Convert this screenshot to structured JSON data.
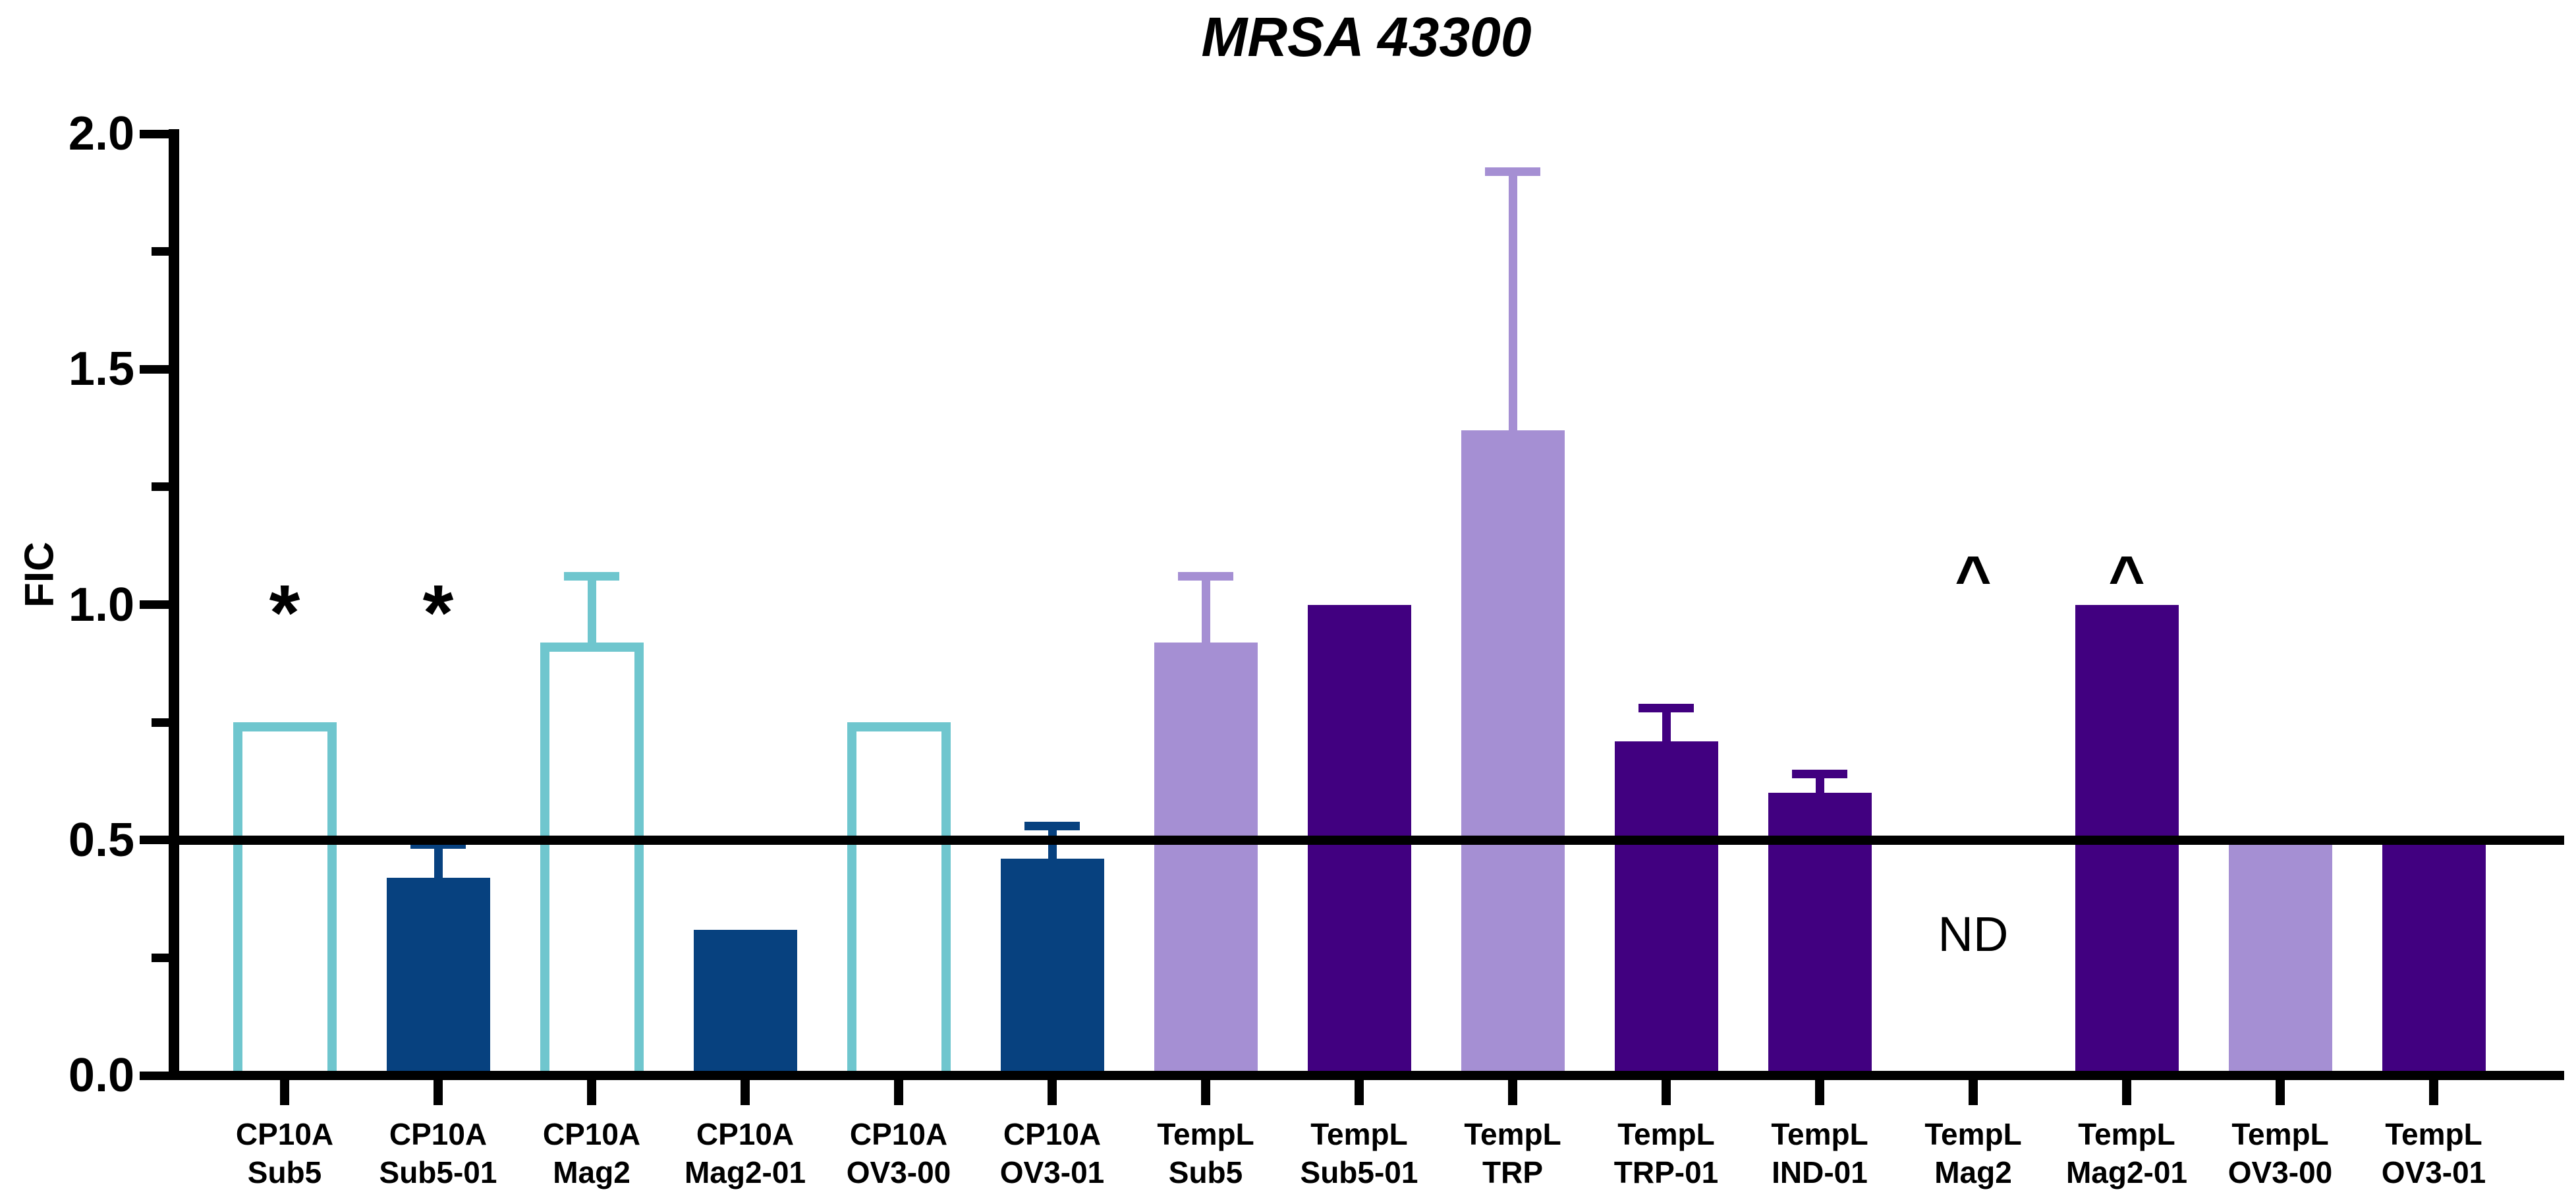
{
  "title": "MRSA 43300",
  "y_axis": {
    "label": "FIC",
    "tick_labels": [
      "0.0",
      "0.5",
      "1.0",
      "1.5",
      "2.0"
    ]
  },
  "annotations": {
    "nd_label": "ND",
    "star_symbol": "*",
    "caret_symbol": "^"
  },
  "colors": {
    "teal_outline": "#6FC6CE",
    "navy": "#07417F",
    "light_purple": "#A58FD3",
    "dark_purple": "#410080",
    "axis_black": "#000000",
    "background": "#FFFFFF"
  },
  "chart_data": {
    "type": "bar",
    "title": "MRSA 43300",
    "xlabel": "",
    "ylabel": "FIC",
    "ylim": [
      0.0,
      2.0
    ],
    "y_major_ticks": [
      0.0,
      0.5,
      1.0,
      1.5,
      2.0
    ],
    "y_minor_ticks": [
      0.25,
      0.75,
      1.25,
      1.75
    ],
    "reference_line_y": 0.5,
    "grid": false,
    "legend_position": "none",
    "categories": [
      "CP10A Sub5",
      "CP10A Sub5-01",
      "CP10A Mag2",
      "CP10A Mag2-01",
      "CP10A OV3-00",
      "CP10A OV3-01",
      "TempL Sub5",
      "TempL Sub5-01",
      "TempL TRP",
      "TempL TRP-01",
      "TempL IND-01",
      "TempL Mag2",
      "TempL Mag2-01",
      "TempL OV3-00",
      "TempL OV3-01"
    ],
    "bars": [
      {
        "label_line1": "CP10A",
        "label_line2": "Sub5",
        "value": 0.75,
        "error_top": null,
        "style": "teal-outline",
        "annotation": "*",
        "nd": false
      },
      {
        "label_line1": "CP10A",
        "label_line2": "Sub5-01",
        "value": 0.42,
        "error_top": 0.49,
        "style": "navy",
        "annotation": "*",
        "nd": false
      },
      {
        "label_line1": "CP10A",
        "label_line2": "Mag2",
        "value": 0.92,
        "error_top": 1.06,
        "style": "teal-outline",
        "annotation": null,
        "nd": false
      },
      {
        "label_line1": "CP10A",
        "label_line2": "Mag2-01",
        "value": 0.31,
        "error_top": null,
        "style": "navy",
        "annotation": null,
        "nd": false
      },
      {
        "label_line1": "CP10A",
        "label_line2": "OV3-00",
        "value": 0.75,
        "error_top": null,
        "style": "teal-outline",
        "annotation": null,
        "nd": false
      },
      {
        "label_line1": "CP10A",
        "label_line2": "OV3-01",
        "value": 0.46,
        "error_top": 0.53,
        "style": "navy",
        "annotation": null,
        "nd": false
      },
      {
        "label_line1": "TempL",
        "label_line2": "Sub5",
        "value": 0.92,
        "error_top": 1.06,
        "style": "light-purple",
        "annotation": null,
        "nd": false
      },
      {
        "label_line1": "TempL",
        "label_line2": "Sub5-01",
        "value": 1.0,
        "error_top": null,
        "style": "dark-purple",
        "annotation": null,
        "nd": false
      },
      {
        "label_line1": "TempL",
        "label_line2": "TRP",
        "value": 1.37,
        "error_top": 1.92,
        "style": "light-purple",
        "annotation": null,
        "nd": false
      },
      {
        "label_line1": "TempL",
        "label_line2": "TRP-01",
        "value": 0.71,
        "error_top": 0.78,
        "style": "dark-purple",
        "annotation": null,
        "nd": false
      },
      {
        "label_line1": "TempL",
        "label_line2": "IND-01",
        "value": 0.6,
        "error_top": 0.64,
        "style": "dark-purple",
        "annotation": null,
        "nd": false
      },
      {
        "label_line1": "TempL",
        "label_line2": "Mag2",
        "value": null,
        "error_top": null,
        "style": "none",
        "annotation": "^",
        "nd": true
      },
      {
        "label_line1": "TempL",
        "label_line2": "Mag2-01",
        "value": 1.0,
        "error_top": null,
        "style": "dark-purple",
        "annotation": "^",
        "nd": false
      },
      {
        "label_line1": "TempL",
        "label_line2": "OV3-00",
        "value": 0.5,
        "error_top": null,
        "style": "light-purple",
        "annotation": null,
        "nd": false
      },
      {
        "label_line1": "TempL",
        "label_line2": "OV3-01",
        "value": 0.5,
        "error_top": null,
        "style": "dark-purple",
        "annotation": null,
        "nd": false
      }
    ],
    "annotation_y": {
      "star": 0.98,
      "caret": 1.09,
      "nd": 0.3
    }
  }
}
